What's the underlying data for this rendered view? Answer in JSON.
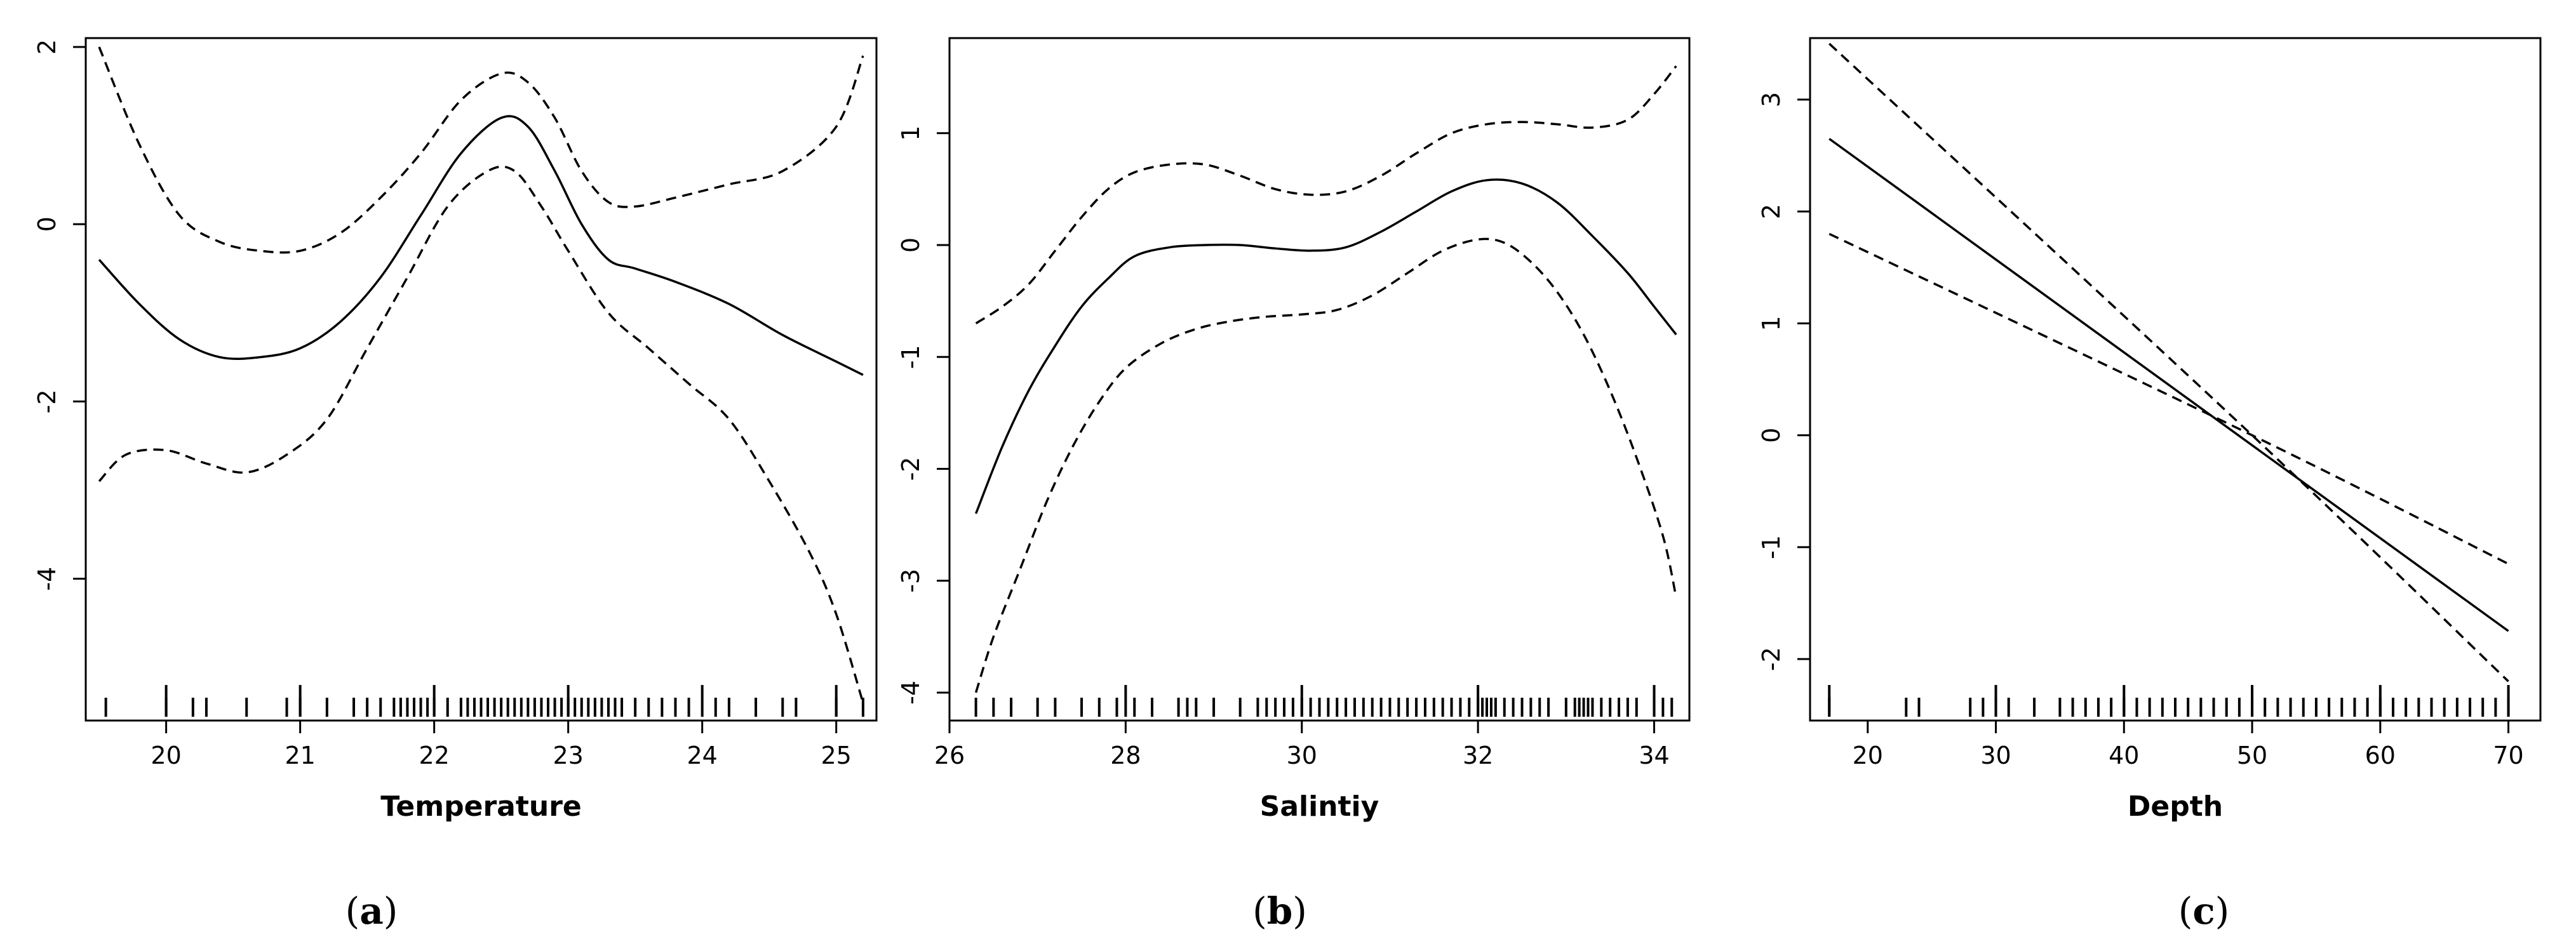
{
  "chart_data": [
    {
      "type": "line",
      "panel": "(a)",
      "panel_letter": "a",
      "xlabel": "Temperature",
      "ylabel": "",
      "xlim": [
        19.4,
        25.3
      ],
      "ylim": [
        -5.6,
        2.1
      ],
      "xticks": [
        20,
        21,
        22,
        23,
        24,
        25
      ],
      "yticks": [
        -4,
        -2,
        0,
        2
      ],
      "series": [
        {
          "style": "solid",
          "x": [
            19.5,
            19.8,
            20.1,
            20.4,
            20.7,
            21.0,
            21.3,
            21.6,
            21.9,
            22.2,
            22.5,
            22.7,
            22.9,
            23.1,
            23.3,
            23.5,
            23.8,
            24.2,
            24.6,
            25.0,
            25.2
          ],
          "y": [
            -0.4,
            -0.9,
            -1.3,
            -1.5,
            -1.5,
            -1.4,
            -1.1,
            -0.6,
            0.1,
            0.8,
            1.2,
            1.1,
            0.6,
            0.0,
            -0.4,
            -0.5,
            -0.65,
            -0.9,
            -1.25,
            -1.55,
            -1.7
          ]
        },
        {
          "style": "dashed",
          "x": [
            19.5,
            19.8,
            20.1,
            20.4,
            20.7,
            21.0,
            21.3,
            21.6,
            21.9,
            22.2,
            22.5,
            22.7,
            22.9,
            23.1,
            23.3,
            23.5,
            23.8,
            24.2,
            24.6,
            25.0,
            25.2
          ],
          "y": [
            2.0,
            0.9,
            0.1,
            -0.2,
            -0.3,
            -0.3,
            -0.1,
            0.3,
            0.8,
            1.4,
            1.7,
            1.6,
            1.2,
            0.6,
            0.25,
            0.2,
            0.3,
            0.45,
            0.6,
            1.1,
            1.9
          ]
        },
        {
          "style": "dashed",
          "x": [
            19.5,
            19.7,
            20.0,
            20.3,
            20.6,
            20.9,
            21.2,
            21.5,
            21.8,
            22.1,
            22.4,
            22.6,
            22.8,
            23.0,
            23.3,
            23.6,
            23.9,
            24.2,
            24.5,
            24.8,
            25.0,
            25.2
          ],
          "y": [
            -2.9,
            -2.6,
            -2.55,
            -2.7,
            -2.8,
            -2.6,
            -2.2,
            -1.4,
            -0.6,
            0.2,
            0.6,
            0.6,
            0.2,
            -0.3,
            -1.0,
            -1.4,
            -1.8,
            -2.2,
            -2.9,
            -3.7,
            -4.4,
            -5.4
          ]
        }
      ],
      "rug": [
        19.55,
        20.0,
        20.2,
        20.3,
        20.6,
        20.9,
        21.0,
        21.2,
        21.4,
        21.5,
        21.6,
        21.7,
        21.75,
        21.8,
        21.85,
        21.9,
        21.95,
        22.0,
        22.1,
        22.2,
        22.25,
        22.3,
        22.35,
        22.4,
        22.45,
        22.5,
        22.55,
        22.6,
        22.65,
        22.7,
        22.75,
        22.8,
        22.85,
        22.9,
        22.95,
        23.0,
        23.05,
        23.1,
        23.15,
        23.2,
        23.25,
        23.3,
        23.35,
        23.4,
        23.5,
        23.6,
        23.7,
        23.8,
        23.9,
        24.1,
        24.2,
        24.4,
        24.6,
        24.7,
        25.0,
        25.2
      ],
      "rug_tall": [
        20.0,
        21.0,
        22.0,
        23.0,
        24.0,
        25.0
      ]
    },
    {
      "type": "line",
      "panel": "(b)",
      "panel_letter": "b",
      "xlabel": "Salintiy",
      "ylabel": "",
      "xlim": [
        26.0,
        34.4
      ],
      "ylim": [
        -4.25,
        1.85
      ],
      "xticks": [
        26,
        28,
        30,
        32,
        34
      ],
      "yticks": [
        -4,
        -3,
        -2,
        -1,
        0,
        1
      ],
      "series": [
        {
          "style": "solid",
          "x": [
            26.3,
            26.6,
            26.9,
            27.2,
            27.5,
            27.8,
            28.1,
            28.5,
            28.9,
            29.3,
            29.7,
            30.1,
            30.5,
            30.9,
            31.3,
            31.7,
            32.1,
            32.5,
            32.9,
            33.3,
            33.7,
            34.0,
            34.25
          ],
          "y": [
            -2.4,
            -1.8,
            -1.3,
            -0.9,
            -0.55,
            -0.3,
            -0.1,
            -0.02,
            0.0,
            0.0,
            -0.03,
            -0.05,
            -0.02,
            0.12,
            0.3,
            0.48,
            0.58,
            0.55,
            0.38,
            0.08,
            -0.25,
            -0.55,
            -0.8
          ]
        },
        {
          "style": "dashed",
          "x": [
            26.3,
            26.6,
            26.9,
            27.2,
            27.5,
            27.8,
            28.1,
            28.5,
            28.9,
            29.3,
            29.7,
            30.1,
            30.5,
            30.9,
            31.3,
            31.7,
            32.1,
            32.5,
            32.9,
            33.3,
            33.7,
            34.0,
            34.25
          ],
          "y": [
            -0.7,
            -0.55,
            -0.35,
            -0.05,
            0.25,
            0.5,
            0.65,
            0.72,
            0.72,
            0.62,
            0.5,
            0.45,
            0.48,
            0.62,
            0.82,
            1.0,
            1.08,
            1.1,
            1.08,
            1.05,
            1.12,
            1.35,
            1.6
          ]
        },
        {
          "style": "dashed",
          "x": [
            26.3,
            26.5,
            26.8,
            27.1,
            27.4,
            27.7,
            28.0,
            28.4,
            28.8,
            29.2,
            29.6,
            30.0,
            30.4,
            30.8,
            31.2,
            31.6,
            32.0,
            32.3,
            32.6,
            32.9,
            33.2,
            33.5,
            33.8,
            34.1,
            34.25
          ],
          "y": [
            -4.0,
            -3.5,
            -2.9,
            -2.3,
            -1.8,
            -1.4,
            -1.1,
            -0.88,
            -0.75,
            -0.68,
            -0.64,
            -0.62,
            -0.58,
            -0.45,
            -0.25,
            -0.05,
            0.05,
            0.02,
            -0.15,
            -0.42,
            -0.8,
            -1.3,
            -1.9,
            -2.6,
            -3.15
          ]
        }
      ],
      "rug": [
        26.3,
        26.5,
        26.7,
        27.0,
        27.2,
        27.5,
        27.7,
        27.9,
        28.1,
        28.3,
        28.6,
        28.7,
        28.8,
        29.0,
        29.3,
        29.5,
        29.6,
        29.7,
        29.8,
        29.9,
        30.0,
        30.1,
        30.2,
        30.3,
        30.4,
        30.5,
        30.6,
        30.7,
        30.8,
        30.9,
        31.0,
        31.1,
        31.2,
        31.3,
        31.4,
        31.5,
        31.6,
        31.7,
        31.8,
        31.9,
        32.0,
        32.05,
        32.1,
        32.15,
        32.2,
        32.3,
        32.4,
        32.5,
        32.6,
        32.7,
        32.8,
        33.0,
        33.1,
        33.15,
        33.2,
        33.25,
        33.3,
        33.4,
        33.5,
        33.6,
        33.7,
        33.8,
        34.0,
        34.1,
        34.2
      ],
      "rug_tall": [
        28.0,
        30.0,
        32.0,
        34.0
      ]
    },
    {
      "type": "line",
      "panel": "(c)",
      "panel_letter": "c",
      "xlabel": "Depth",
      "ylabel": "",
      "xlim": [
        15.5,
        72.5
      ],
      "ylim": [
        -2.55,
        3.55
      ],
      "xticks": [
        20,
        30,
        40,
        50,
        60,
        70
      ],
      "yticks": [
        -2,
        -1,
        0,
        1,
        2,
        3
      ],
      "series": [
        {
          "style": "solid",
          "x": [
            17,
            70
          ],
          "y": [
            2.65,
            -1.75
          ]
        },
        {
          "style": "dashed",
          "x": [
            17,
            50,
            70
          ],
          "y": [
            3.5,
            0.0,
            -2.2
          ]
        },
        {
          "style": "dashed",
          "x": [
            17,
            50,
            70
          ],
          "y": [
            1.8,
            0.0,
            -1.15
          ]
        }
      ],
      "rug": [
        17,
        23,
        24,
        28,
        29,
        30,
        31,
        33,
        35,
        36,
        37,
        38,
        39,
        40,
        41,
        42,
        43,
        44,
        45,
        46,
        47,
        48,
        49,
        50,
        51,
        52,
        53,
        54,
        55,
        56,
        57,
        58,
        59,
        60,
        61,
        62,
        63,
        64,
        65,
        66,
        67,
        68,
        69,
        70
      ],
      "rug_tall": [
        17,
        30,
        40,
        50,
        60,
        70
      ]
    }
  ]
}
